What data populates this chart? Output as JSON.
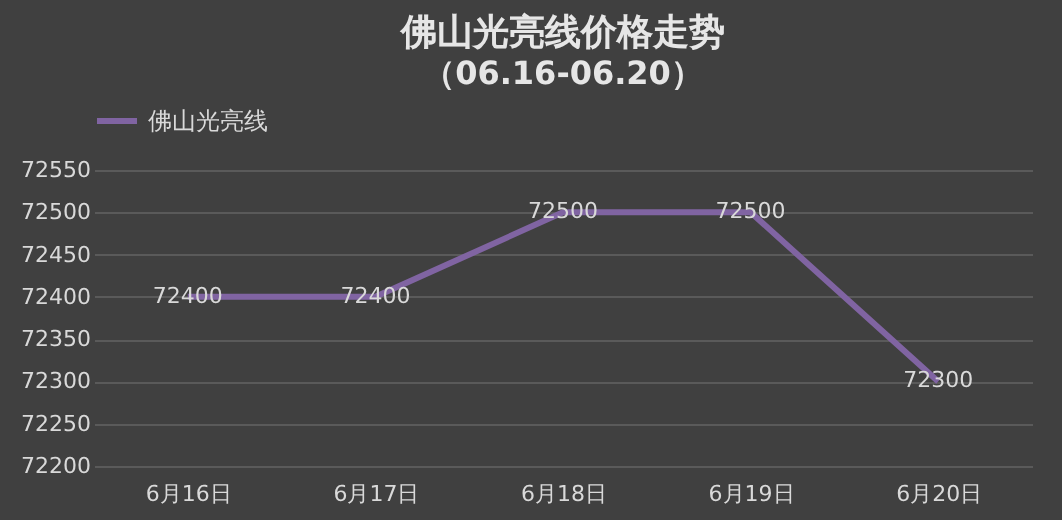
{
  "chart_data": {
    "type": "line",
    "title": "佛山光亮线价格走势",
    "subtitle": "（06.16-06.20）",
    "categories": [
      "6月16日",
      "6月17日",
      "6月18日",
      "6月19日",
      "6月20日"
    ],
    "series": [
      {
        "name": "佛山光亮线",
        "color": "#8064a2",
        "values": [
          72400,
          72400,
          72500,
          72500,
          72300
        ]
      }
    ],
    "ylim": [
      72200,
      72550
    ],
    "yticks": [
      72200,
      72250,
      72300,
      72350,
      72400,
      72450,
      72500,
      72550
    ],
    "grid": "y",
    "legend": "top",
    "data_labels": true,
    "marker": "none",
    "line_style": "solid"
  }
}
